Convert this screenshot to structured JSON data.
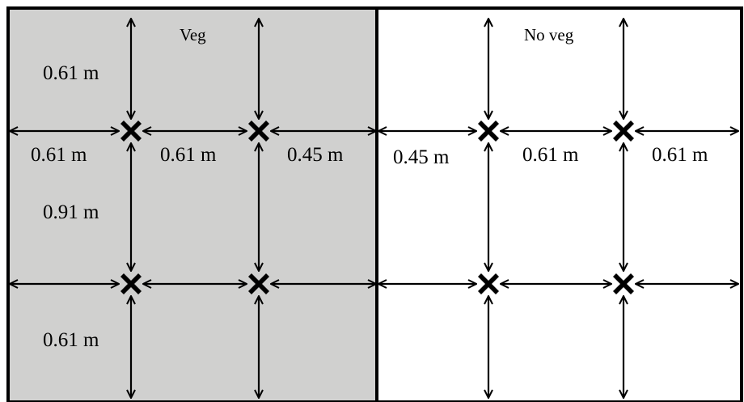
{
  "panels": {
    "left": {
      "label": "Veg",
      "fill": "#d0d0cf"
    },
    "right": {
      "label": "No veg",
      "fill": "#ffffff"
    }
  },
  "dimensions": {
    "left_top_vertical": "0.61 m",
    "left_bottom_vertical": "0.61 m",
    "left_mid_vertical": "0.91 m",
    "left_h1": "0.61 m",
    "left_h2": "0.61 m",
    "left_h3": "0.45 m",
    "right_h1": "0.45 m",
    "right_h2": "0.61 m",
    "right_h3": "0.61 m"
  },
  "markers": [
    "plant-x-marker",
    "plant-x-marker",
    "plant-x-marker",
    "plant-x-marker",
    "plant-x-marker",
    "plant-x-marker",
    "plant-x-marker",
    "plant-x-marker"
  ],
  "colors": {
    "ink": "#000000",
    "veg_fill": "#d0d0cf"
  }
}
